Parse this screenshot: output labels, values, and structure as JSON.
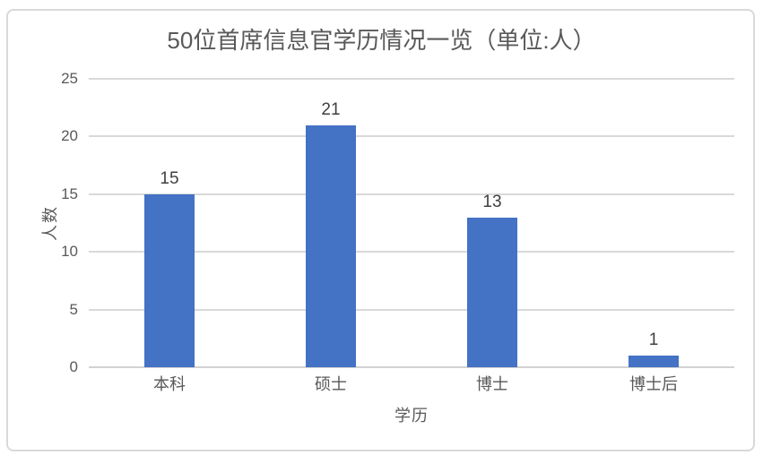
{
  "chart_data": {
    "type": "bar",
    "title": "50位首席信息官学历情况一览（单位:人）",
    "xlabel": "学历",
    "ylabel": "人数",
    "categories": [
      "本科",
      "硕士",
      "博士",
      "博士后"
    ],
    "values": [
      15,
      21,
      13,
      1
    ],
    "data_labels": [
      "15",
      "21",
      "13",
      "1"
    ],
    "ylim": [
      0,
      25
    ],
    "yticks": [
      0,
      5,
      10,
      15,
      20,
      25
    ],
    "grid": true,
    "legend": false,
    "colors": {
      "bar": "#4472C4",
      "gridline": "#D9D9D9",
      "axis_line": "#D2D2D2",
      "title_text": "#595959",
      "tick_text": "#595959",
      "data_label_text": "#404040",
      "chart_border": "#D9D9D9"
    }
  }
}
